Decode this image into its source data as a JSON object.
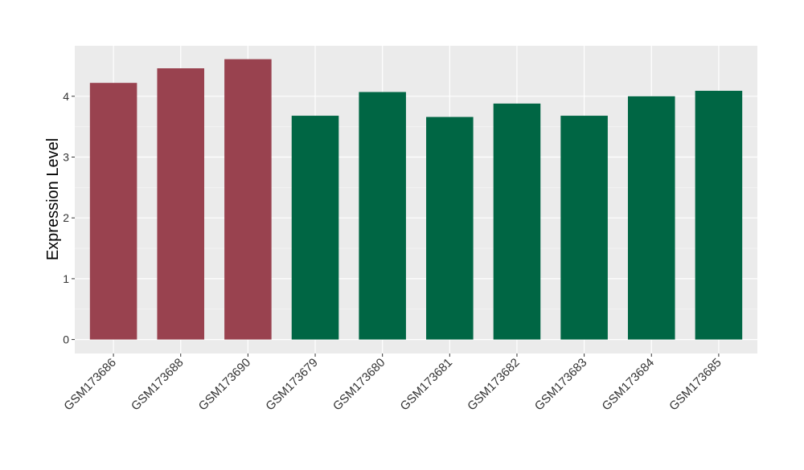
{
  "chart_data": {
    "type": "bar",
    "y_label": "Expression Level",
    "categories": [
      "GSM173686",
      "GSM173688",
      "GSM173690",
      "GSM173679",
      "GSM173680",
      "GSM173681",
      "GSM173682",
      "GSM173683",
      "GSM173684",
      "GSM173685"
    ],
    "values": [
      4.22,
      4.46,
      4.61,
      3.68,
      4.07,
      3.66,
      3.88,
      3.68,
      4.0,
      4.09
    ],
    "colors": [
      "#99424f",
      "#99424f",
      "#99424f",
      "#006644",
      "#006644",
      "#006644",
      "#006644",
      "#006644",
      "#006644",
      "#006644"
    ],
    "ylim": [
      -0.23,
      4.83
    ],
    "yticks": [
      0,
      1,
      2,
      3,
      4
    ],
    "grid": true
  }
}
